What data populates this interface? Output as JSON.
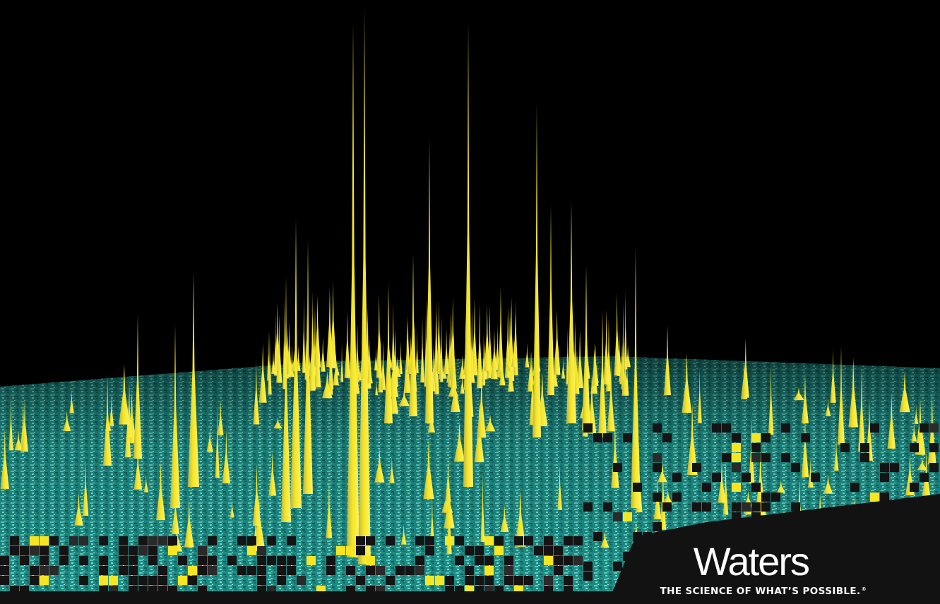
{
  "brand": {
    "name": "Waters",
    "tagline": "THE SCIENCE OF WHAT’S POSSIBLE.",
    "registered_mark": "®"
  },
  "colors": {
    "background": "#000000",
    "surface": "#2aa39a",
    "peak": "#f5e625",
    "peak_shadow": "#8a8a3a",
    "text": "#ffffff"
  }
}
